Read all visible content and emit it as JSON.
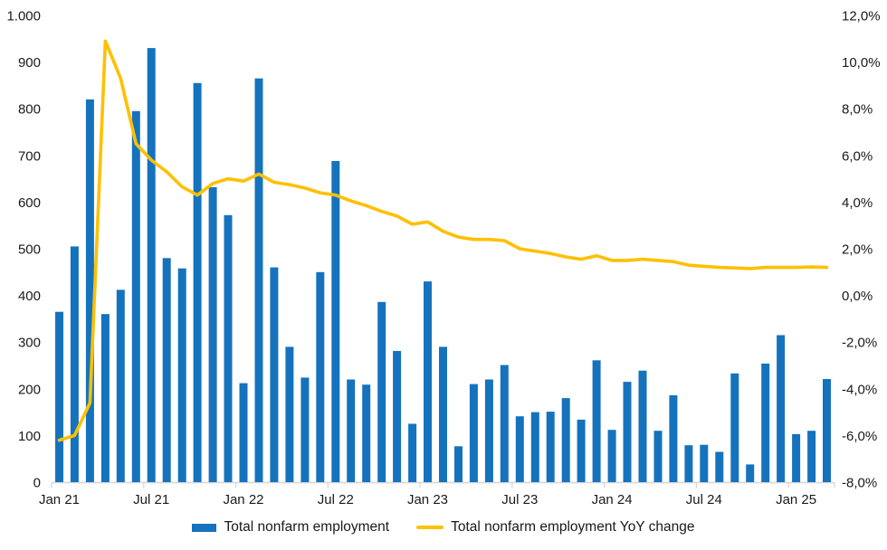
{
  "colors": {
    "bar": "#1573BD",
    "line": "#FFC000",
    "axis": "#D6D6D6",
    "text": "#1A1A1A",
    "background": "#FFFFFF"
  },
  "chart_data": {
    "type": "combo_bar_line",
    "title": "",
    "grid": "off",
    "legend_position": "bottom",
    "x": [
      "Jan 21",
      "Feb 21",
      "Mar 21",
      "Apr 21",
      "May 21",
      "Jun 21",
      "Jul 21",
      "Aug 21",
      "Sep 21",
      "Oct 21",
      "Nov 21",
      "Dec 21",
      "Jan 22",
      "Feb 22",
      "Mar 22",
      "Apr 22",
      "May 22",
      "Jun 22",
      "Jul 22",
      "Aug 22",
      "Sep 22",
      "Oct 22",
      "Nov 22",
      "Dec 22",
      "Jan 23",
      "Feb 23",
      "Mar 23",
      "Apr 23",
      "May 23",
      "Jun 23",
      "Jul 23",
      "Aug 23",
      "Sep 23",
      "Oct 23",
      "Nov 23",
      "Dec 23",
      "Jan 24",
      "Feb 24",
      "Mar 24",
      "Apr 24",
      "May 24",
      "Jun 24",
      "Jul 24",
      "Aug 24",
      "Sep 24",
      "Oct 24",
      "Nov 24",
      "Dec 24",
      "Jan 25",
      "Feb 25",
      "Mar 25"
    ],
    "x_axis_tick_labels": [
      "Jan 21",
      "Jul 21",
      "Jan 22",
      "Jul 22",
      "Jan 23",
      "Jul 23",
      "Jan 24",
      "Jul 24",
      "Jan 25"
    ],
    "series": [
      {
        "name": "Total nonfarm employment",
        "type": "bar",
        "axis": "left",
        "color": "#1573BD",
        "values": [
          365,
          505,
          820,
          360,
          412,
          795,
          930,
          480,
          458,
          855,
          632,
          572,
          212,
          865,
          460,
          290,
          224,
          450,
          688,
          220,
          209,
          386,
          281,
          125,
          430,
          290,
          77,
          210,
          220,
          251,
          141,
          150,
          151,
          180,
          134,
          261,
          112,
          215,
          239,
          110,
          186,
          79,
          80,
          65,
          233,
          38,
          254,
          315,
          103,
          110,
          221
        ]
      },
      {
        "name": "Total nonfarm employment YoY change",
        "type": "line",
        "axis": "right",
        "color": "#FFC000",
        "values": [
          -6.2,
          -6.0,
          -4.6,
          10.9,
          9.3,
          6.5,
          5.8,
          5.3,
          4.65,
          4.3,
          4.8,
          5.0,
          4.9,
          5.2,
          4.85,
          4.75,
          4.6,
          4.4,
          4.3,
          4.05,
          3.85,
          3.6,
          3.4,
          3.05,
          3.15,
          2.75,
          2.5,
          2.4,
          2.4,
          2.35,
          2.0,
          1.9,
          1.8,
          1.65,
          1.55,
          1.7,
          1.5,
          1.5,
          1.55,
          1.5,
          1.45,
          1.3,
          1.25,
          1.2,
          1.18,
          1.15,
          1.2,
          1.2,
          1.2,
          1.22,
          1.2
        ]
      }
    ],
    "left_axis": {
      "min": 0,
      "max": 1000,
      "step": 100,
      "labels": [
        "0",
        "100",
        "200",
        "300",
        "400",
        "500",
        "600",
        "700",
        "800",
        "900",
        "1.000"
      ]
    },
    "right_axis": {
      "min": -8,
      "max": 12,
      "step": 2,
      "labels": [
        "-8,0%",
        "-6,0%",
        "-4,0%",
        "-2,0%",
        "0,0%",
        "2,0%",
        "4,0%",
        "6,0%",
        "8,0%",
        "10,0%",
        "12,0%"
      ]
    }
  }
}
